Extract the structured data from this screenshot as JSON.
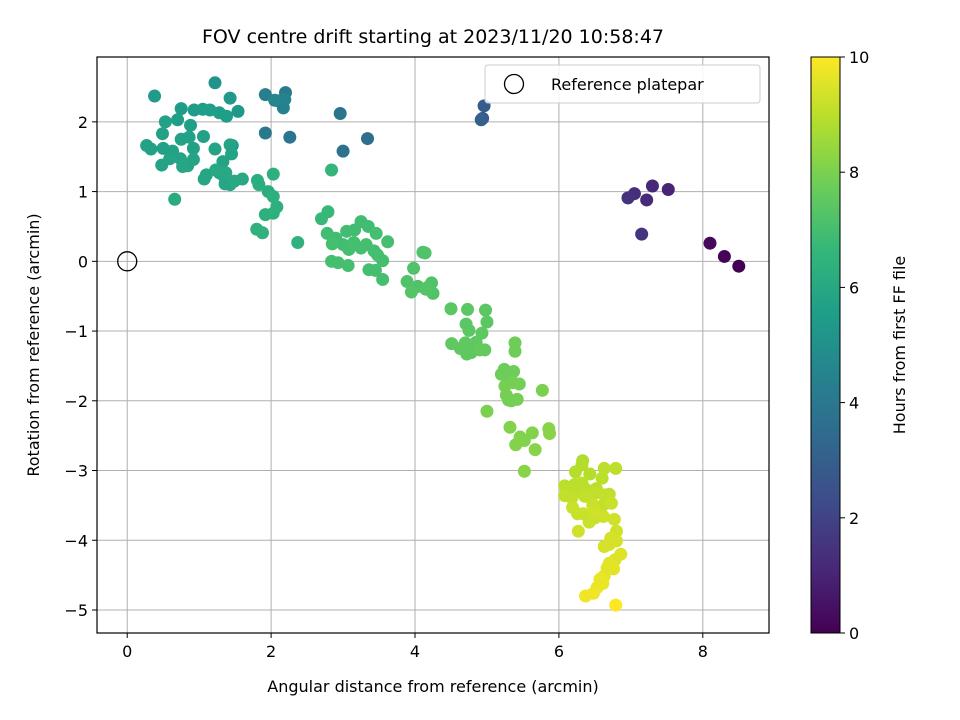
{
  "chart_data": {
    "type": "scatter",
    "title": "FOV centre drift starting at 2023/11/20 10:58:47",
    "xlabel": "Angular distance from reference (arcmin)",
    "ylabel": "Rotation from reference (arcmin)",
    "xlim": [
      -0.42,
      8.92
    ],
    "ylim": [
      -5.33,
      2.93
    ],
    "xticks": [
      0,
      2,
      4,
      6,
      8
    ],
    "yticks": [
      -5,
      -4,
      -3,
      -2,
      -1,
      0,
      1,
      2
    ],
    "grid": true,
    "legend": {
      "placement": "upper right",
      "entries": [
        "Reference platepar"
      ]
    },
    "colorbar": {
      "label": "Hours from first FF file",
      "range": [
        0,
        10
      ],
      "ticks": [
        0,
        2,
        4,
        6,
        8,
        10
      ],
      "colormap": "viridis"
    },
    "reference_point": {
      "x": 0,
      "y": 0,
      "label": "Reference platepar"
    },
    "points": [
      [
        8.5,
        -0.07,
        0.0
      ],
      [
        8.3,
        0.07,
        0.1
      ],
      [
        8.1,
        0.26,
        0.2
      ],
      [
        7.52,
        1.03,
        1.0
      ],
      [
        7.3,
        1.08,
        1.1
      ],
      [
        7.22,
        0.88,
        1.2
      ],
      [
        7.05,
        0.97,
        1.3
      ],
      [
        6.96,
        0.91,
        1.4
      ],
      [
        7.15,
        0.39,
        1.5
      ],
      [
        4.94,
        2.05,
        2.8
      ],
      [
        4.96,
        2.23,
        2.9
      ],
      [
        4.92,
        2.03,
        3.0
      ],
      [
        3.34,
        1.76,
        3.6
      ],
      [
        3.0,
        1.58,
        3.7
      ],
      [
        2.96,
        2.12,
        3.8
      ],
      [
        2.26,
        1.78,
        3.9
      ],
      [
        1.92,
        1.84,
        4.0
      ],
      [
        2.2,
        2.42,
        4.1
      ],
      [
        2.1,
        2.3,
        4.2
      ],
      [
        1.92,
        2.39,
        4.3
      ],
      [
        2.17,
        2.2,
        4.4
      ],
      [
        2.19,
        2.32,
        4.5
      ],
      [
        2.05,
        2.31,
        4.6
      ],
      [
        1.22,
        2.56,
        5.2
      ],
      [
        1.54,
        2.15,
        5.3
      ],
      [
        1.43,
        2.34,
        5.3
      ],
      [
        1.46,
        1.66,
        5.4
      ],
      [
        0.38,
        2.37,
        5.4
      ],
      [
        0.75,
        2.19,
        5.5
      ],
      [
        0.93,
        2.17,
        5.5
      ],
      [
        1.05,
        2.18,
        5.5
      ],
      [
        1.38,
        2.08,
        5.6
      ],
      [
        1.28,
        2.13,
        5.6
      ],
      [
        1.15,
        2.17,
        5.6
      ],
      [
        0.88,
        1.95,
        5.6
      ],
      [
        0.7,
        2.03,
        5.6
      ],
      [
        0.53,
        2.0,
        5.7
      ],
      [
        0.49,
        1.83,
        5.7
      ],
      [
        1.06,
        1.79,
        5.7
      ],
      [
        0.27,
        1.66,
        5.7
      ],
      [
        0.33,
        1.61,
        5.7
      ],
      [
        0.5,
        1.62,
        5.7
      ],
      [
        0.63,
        1.58,
        5.7
      ],
      [
        0.75,
        1.75,
        5.7
      ],
      [
        0.86,
        1.78,
        5.7
      ],
      [
        0.92,
        1.62,
        5.7
      ],
      [
        0.74,
        1.47,
        5.8
      ],
      [
        0.92,
        1.46,
        5.8
      ],
      [
        1.22,
        1.61,
        5.8
      ],
      [
        1.33,
        1.43,
        5.8
      ],
      [
        1.45,
        1.54,
        5.8
      ],
      [
        1.43,
        1.67,
        5.8
      ],
      [
        0.59,
        1.47,
        5.8
      ],
      [
        0.48,
        1.38,
        5.8
      ],
      [
        0.84,
        1.37,
        5.8
      ],
      [
        0.77,
        1.36,
        5.9
      ],
      [
        1.1,
        1.24,
        5.9
      ],
      [
        1.07,
        1.18,
        5.9
      ],
      [
        1.28,
        1.27,
        5.9
      ],
      [
        1.35,
        1.21,
        5.9
      ],
      [
        1.43,
        1.1,
        5.9
      ],
      [
        1.36,
        1.11,
        5.9
      ],
      [
        1.49,
        1.15,
        6.0
      ],
      [
        1.37,
        1.27,
        6.0
      ],
      [
        1.6,
        1.18,
        6.0
      ],
      [
        1.23,
        1.31,
        6.0
      ],
      [
        0.66,
        0.89,
        6.1
      ],
      [
        1.83,
        1.1,
        6.2
      ],
      [
        1.81,
        1.16,
        6.2
      ],
      [
        1.96,
        1.0,
        6.2
      ],
      [
        2.03,
        0.93,
        6.3
      ],
      [
        2.03,
        1.25,
        6.3
      ],
      [
        2.08,
        0.78,
        6.3
      ],
      [
        2.03,
        0.69,
        6.3
      ],
      [
        1.92,
        0.67,
        6.3
      ],
      [
        1.8,
        0.46,
        6.4
      ],
      [
        1.88,
        0.41,
        6.4
      ],
      [
        2.37,
        0.27,
        6.4
      ],
      [
        2.84,
        1.31,
        6.6
      ],
      [
        2.79,
        0.71,
        6.7
      ],
      [
        2.7,
        0.61,
        6.7
      ],
      [
        3.25,
        0.57,
        6.9
      ],
      [
        3.35,
        0.5,
        6.9
      ],
      [
        3.16,
        0.45,
        6.9
      ],
      [
        3.05,
        0.43,
        6.9
      ],
      [
        2.78,
        0.4,
        6.9
      ],
      [
        2.9,
        0.33,
        6.9
      ],
      [
        3.0,
        0.24,
        6.9
      ],
      [
        2.85,
        0.25,
        7.0
      ],
      [
        3.08,
        0.17,
        7.0
      ],
      [
        3.15,
        0.27,
        7.0
      ],
      [
        3.25,
        0.19,
        7.0
      ],
      [
        3.32,
        0.24,
        7.0
      ],
      [
        3.46,
        0.4,
        7.0
      ],
      [
        3.62,
        0.28,
        7.0
      ],
      [
        3.43,
        0.15,
        7.0
      ],
      [
        3.48,
        0.09,
        7.0
      ],
      [
        3.55,
        0.01,
        7.0
      ],
      [
        3.36,
        -0.12,
        7.0
      ],
      [
        3.45,
        -0.13,
        7.0
      ],
      [
        3.55,
        -0.26,
        7.0
      ],
      [
        2.84,
        0.0,
        7.0
      ],
      [
        2.93,
        -0.02,
        7.0
      ],
      [
        3.07,
        -0.06,
        7.0
      ],
      [
        3.98,
        -0.1,
        7.2
      ],
      [
        4.11,
        0.13,
        7.2
      ],
      [
        4.14,
        0.12,
        7.2
      ],
      [
        3.89,
        -0.29,
        7.2
      ],
      [
        4.04,
        -0.36,
        7.2
      ],
      [
        4.18,
        -0.37,
        7.2
      ],
      [
        4.23,
        -0.31,
        7.2
      ],
      [
        4.25,
        -0.46,
        7.2
      ],
      [
        3.95,
        -0.44,
        7.3
      ],
      [
        4.15,
        -0.4,
        7.3
      ],
      [
        4.5,
        -0.68,
        7.4
      ],
      [
        4.73,
        -0.69,
        7.4
      ],
      [
        4.71,
        -0.9,
        7.4
      ],
      [
        4.75,
        -0.99,
        7.4
      ],
      [
        4.98,
        -0.7,
        7.4
      ],
      [
        5.0,
        -0.87,
        7.4
      ],
      [
        4.93,
        -1.03,
        7.5
      ],
      [
        4.85,
        -1.16,
        7.5
      ],
      [
        4.7,
        -1.17,
        7.5
      ],
      [
        4.51,
        -1.18,
        7.5
      ],
      [
        4.63,
        -1.25,
        7.5
      ],
      [
        4.72,
        -1.33,
        7.5
      ],
      [
        4.78,
        -1.31,
        7.5
      ],
      [
        4.9,
        -1.27,
        7.6
      ],
      [
        4.97,
        -1.27,
        7.6
      ],
      [
        5.39,
        -1.17,
        7.8
      ],
      [
        5.39,
        -1.29,
        7.8
      ],
      [
        5.24,
        -1.55,
        7.8
      ],
      [
        5.3,
        -1.66,
        7.8
      ],
      [
        5.37,
        -1.58,
        7.8
      ],
      [
        5.2,
        -1.62,
        7.8
      ],
      [
        5.25,
        -1.79,
        7.9
      ],
      [
        5.36,
        -1.74,
        7.9
      ],
      [
        5.45,
        -1.76,
        7.9
      ],
      [
        5.42,
        -1.98,
        7.9
      ],
      [
        5.3,
        -1.99,
        7.9
      ],
      [
        5.27,
        -1.92,
        7.9
      ],
      [
        5.34,
        -2.0,
        7.9
      ],
      [
        5.77,
        -1.85,
        8.0
      ],
      [
        5.0,
        -2.15,
        8.0
      ],
      [
        5.32,
        -2.38,
        8.1
      ],
      [
        5.46,
        -2.52,
        8.1
      ],
      [
        5.4,
        -2.63,
        8.1
      ],
      [
        5.52,
        -2.57,
        8.1
      ],
      [
        5.63,
        -2.46,
        8.1
      ],
      [
        5.67,
        -2.7,
        8.2
      ],
      [
        5.86,
        -2.4,
        8.2
      ],
      [
        5.87,
        -2.47,
        8.2
      ],
      [
        5.52,
        -3.01,
        8.2
      ],
      [
        6.33,
        -2.86,
        8.8
      ],
      [
        6.32,
        -2.92,
        8.9
      ],
      [
        6.23,
        -3.02,
        8.9
      ],
      [
        6.43,
        -3.05,
        8.9
      ],
      [
        6.08,
        -3.22,
        9.0
      ],
      [
        6.22,
        -3.2,
        9.0
      ],
      [
        6.32,
        -3.18,
        9.0
      ],
      [
        6.12,
        -3.28,
        9.0
      ],
      [
        6.28,
        -3.29,
        9.0
      ],
      [
        6.38,
        -3.27,
        9.0
      ],
      [
        6.52,
        -3.26,
        9.0
      ],
      [
        6.63,
        -2.97,
        9.0
      ],
      [
        6.6,
        -3.11,
        9.0
      ],
      [
        6.79,
        -2.97,
        9.0
      ],
      [
        6.08,
        -3.36,
        9.1
      ],
      [
        6.18,
        -3.39,
        9.1
      ],
      [
        6.36,
        -3.37,
        9.1
      ],
      [
        6.42,
        -3.37,
        9.1
      ],
      [
        6.5,
        -3.33,
        9.1
      ],
      [
        6.63,
        -3.35,
        9.1
      ],
      [
        6.7,
        -3.34,
        9.1
      ],
      [
        6.62,
        -3.49,
        9.1
      ],
      [
        6.73,
        -3.47,
        9.2
      ],
      [
        6.47,
        -3.49,
        9.2
      ],
      [
        6.19,
        -3.53,
        9.2
      ],
      [
        6.26,
        -3.62,
        9.2
      ],
      [
        6.34,
        -3.62,
        9.2
      ],
      [
        6.42,
        -3.74,
        9.2
      ],
      [
        6.5,
        -3.68,
        9.2
      ],
      [
        6.62,
        -3.66,
        9.3
      ],
      [
        6.27,
        -3.87,
        9.3
      ],
      [
        6.5,
        -3.59,
        9.3
      ],
      [
        6.77,
        -3.7,
        9.3
      ],
      [
        6.8,
        -3.87,
        9.3
      ],
      [
        6.72,
        -3.97,
        9.4
      ],
      [
        6.7,
        -4.06,
        9.4
      ],
      [
        6.8,
        -4.01,
        9.4
      ],
      [
        6.63,
        -4.09,
        9.4
      ],
      [
        6.86,
        -4.2,
        9.5
      ],
      [
        6.78,
        -4.28,
        9.5
      ],
      [
        6.7,
        -4.33,
        9.6
      ],
      [
        6.67,
        -4.4,
        9.6
      ],
      [
        6.76,
        -4.41,
        9.6
      ],
      [
        6.63,
        -4.51,
        9.6
      ],
      [
        6.57,
        -4.56,
        9.7
      ],
      [
        6.61,
        -4.62,
        9.7
      ],
      [
        6.53,
        -4.68,
        9.7
      ],
      [
        6.48,
        -4.76,
        9.8
      ],
      [
        6.37,
        -4.8,
        9.8
      ],
      [
        6.79,
        -4.93,
        10.0
      ]
    ]
  }
}
